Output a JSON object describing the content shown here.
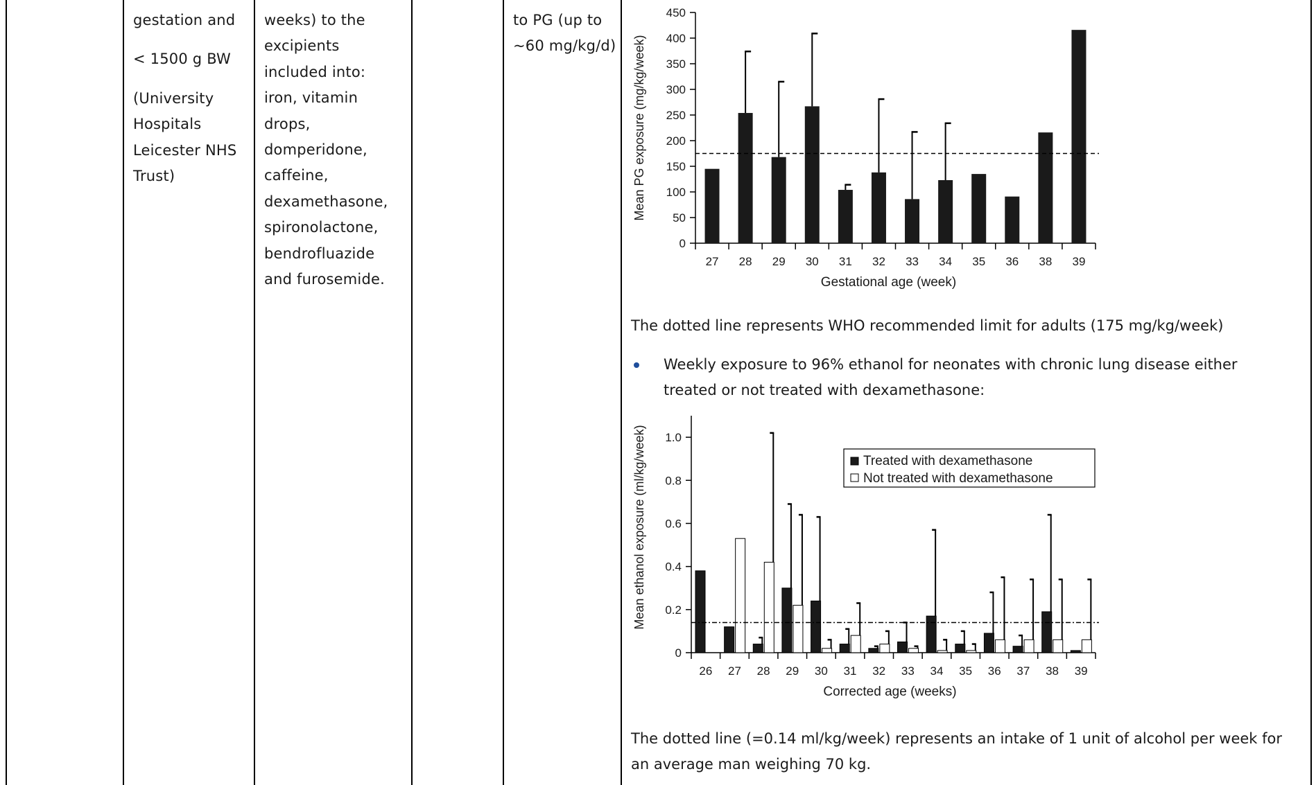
{
  "table": {
    "col2_lines": [
      "gestation and",
      "< 1500 g BW",
      "(University",
      "Hospitals",
      "Leicester NHS",
      "Trust)"
    ],
    "col3_lines": [
      "weeks) to the",
      "excipients",
      "included into:",
      "iron, vitamin",
      "drops,",
      "domperidone,",
      "caffeine,",
      "dexamethasone,",
      "spironolactone,",
      "bendrofluazide",
      "and furosemide."
    ],
    "col5_lines": [
      "to PG (up to",
      "~60 mg/kg/d)"
    ]
  },
  "chart_note_1": "The dotted line represents WHO recommended limit for adults (175 mg/kg/week)",
  "bullet_text_line1": "Weekly exposure to 96% ethanol for neonates with chronic lung disease either",
  "bullet_text_line2": "treated or not treated with dexamethasone:",
  "chart_note_2_line1": "The dotted line (=0.14 ml/kg/week) represents an intake of 1 unit of alcohol per week for",
  "chart_note_2_line2": "an average man weighing 70 kg.",
  "colors": {
    "bar_dark": "#1a1a1a",
    "bar_light": "#ffffff",
    "bullet": "#1f4e9c",
    "grid_line": "#000000"
  },
  "chart_data": [
    {
      "type": "bar",
      "categories": [
        "27",
        "28",
        "29",
        "30",
        "31",
        "32",
        "33",
        "34",
        "35",
        "36",
        "38",
        "39"
      ],
      "values": [
        145,
        254,
        168,
        267,
        104,
        138,
        86,
        123,
        135,
        91,
        216,
        416
      ],
      "error_upper": [
        null,
        374,
        315,
        409,
        114,
        281,
        217,
        234,
        null,
        null,
        null,
        null
      ],
      "reference_line": 175,
      "xlabel": "Gestational age (week)",
      "ylabel": "Mean PG exposure (mg/kg/week)",
      "ylim": [
        0,
        450
      ],
      "yticks": [
        0,
        50,
        100,
        150,
        200,
        250,
        300,
        350,
        400,
        450
      ],
      "legend": null
    },
    {
      "type": "bar",
      "categories": [
        "26",
        "27",
        "28",
        "29",
        "30",
        "31",
        "32",
        "33",
        "34",
        "35",
        "36",
        "37",
        "38",
        "39"
      ],
      "series": [
        {
          "name": "Treated with dexamethasone",
          "values": [
            0.38,
            0.12,
            0.04,
            0.3,
            0.24,
            0.04,
            0.02,
            0.05,
            0.17,
            0.04,
            0.09,
            0.03,
            0.19,
            0.01
          ],
          "error_upper": [
            null,
            null,
            0.07,
            0.69,
            0.63,
            0.11,
            0.03,
            0.14,
            0.57,
            0.1,
            0.28,
            0.08,
            0.64,
            null
          ]
        },
        {
          "name": "Not treated with dexamethasone",
          "values": [
            null,
            0.53,
            0.42,
            0.22,
            0.02,
            0.08,
            0.04,
            0.02,
            0.01,
            0.01,
            0.06,
            0.06,
            0.06,
            0.06
          ],
          "error_upper": [
            null,
            null,
            1.02,
            0.64,
            0.06,
            0.23,
            0.1,
            0.03,
            0.06,
            0.04,
            0.35,
            0.34,
            0.34,
            0.34
          ]
        }
      ],
      "reference_line": 0.14,
      "xlabel": "Corrected age (weeks)",
      "ylabel": "Mean ethanol exposure (ml/kg/week)",
      "ylim": [
        0,
        1.1
      ],
      "yticks": [
        0,
        0.2,
        0.4,
        0.6,
        0.8,
        1.0
      ],
      "ytick_labels": [
        "0",
        "0.2",
        "0.4",
        "0.6",
        "0.8",
        "1.0"
      ],
      "legend": "top-right"
    }
  ]
}
